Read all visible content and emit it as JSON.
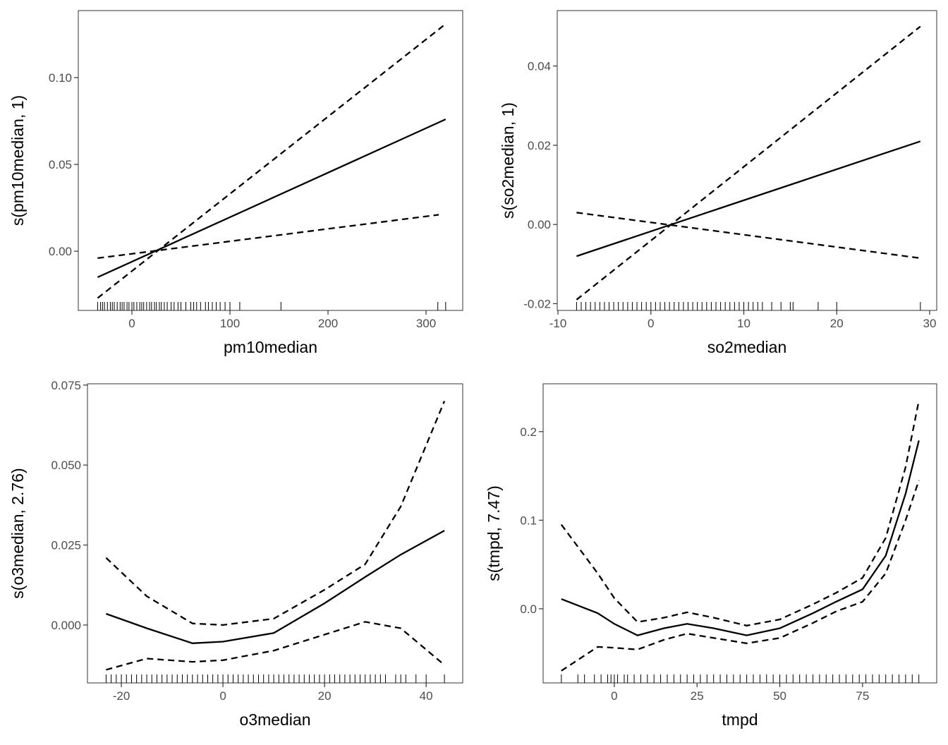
{
  "chart_data": [
    {
      "type": "line",
      "x_label": "pm10median",
      "y_label": "s(pm10median, 1)",
      "x": [
        -35,
        313,
        320
      ],
      "series": [
        {
          "color": "#000000",
          "dash": false,
          "values": [
            -0.015,
            0.0742,
            0.076
          ]
        },
        {
          "color": "#000000",
          "dash": true,
          "values": [
            -0.027,
            0.1278,
            0.131
          ]
        },
        {
          "color": "#000000",
          "dash": true,
          "values": [
            -0.004,
            0.021,
            null
          ]
        }
      ],
      "xlim": [
        -54.7,
        337.4
      ],
      "ylim": [
        -0.0341,
        0.1386
      ],
      "xticks": [
        0,
        100,
        200,
        300
      ],
      "yticks": [
        {
          "value": 0,
          "label": "0.00"
        },
        {
          "value": 0.05,
          "label": "0.05"
        },
        {
          "value": 0.1,
          "label": "0.10"
        }
      ],
      "rug": [
        -35,
        -32,
        -30,
        -28,
        -25,
        -22,
        -20,
        -18,
        -15,
        -12,
        -10,
        -8,
        -5,
        -3,
        0,
        2,
        5,
        8,
        10,
        12,
        15,
        18,
        20,
        23,
        25,
        28,
        30,
        33,
        36,
        40,
        43,
        47,
        50,
        55,
        60,
        63,
        66,
        70,
        75,
        78,
        82,
        86,
        90,
        95,
        100,
        110,
        152,
        312,
        320
      ]
    },
    {
      "type": "line",
      "x_label": "so2median",
      "y_label": "s(so2median, 1)",
      "x": [
        -8,
        29
      ],
      "series": [
        {
          "color": "#000000",
          "dash": false,
          "values": [
            -0.008,
            0.021
          ]
        },
        {
          "color": "#000000",
          "dash": true,
          "values": [
            -0.019,
            0.05
          ]
        },
        {
          "color": "#000000",
          "dash": true,
          "values": [
            0.003,
            -0.0085
          ]
        }
      ],
      "xlim": [
        -10.08,
        30.76
      ],
      "ylim": [
        -0.0217,
        0.054
      ],
      "xticks": [
        -10,
        0,
        10,
        20,
        30
      ],
      "yticks": [
        {
          "value": -0.02,
          "label": "-0.02"
        },
        {
          "value": 0,
          "label": "0.00"
        },
        {
          "value": 0.02,
          "label": "0.02"
        },
        {
          "value": 0.04,
          "label": "0.04"
        }
      ],
      "rug": [
        -8,
        -7.5,
        -7,
        -6.5,
        -6,
        -5.5,
        -5,
        -4.5,
        -4,
        -3.5,
        -3,
        -2.5,
        -2,
        -1.5,
        -1,
        -0.5,
        0,
        0.5,
        1,
        1.5,
        2,
        2.5,
        3,
        3.5,
        4,
        4.5,
        5,
        5.5,
        6,
        6.5,
        7,
        7.5,
        8,
        8.5,
        9,
        9.5,
        10,
        10.5,
        11,
        11.5,
        12,
        13,
        14,
        15,
        15.3,
        18,
        20,
        29
      ]
    },
    {
      "type": "line",
      "x_label": "o3median",
      "y_label": "s(o3median, 2.76)",
      "x": [
        -23,
        -15,
        -6,
        0,
        10,
        20,
        28,
        35,
        43.6
      ],
      "series": [
        {
          "color": "#000000",
          "dash": false,
          "values": [
            0.0035,
            -0.001,
            -0.0057,
            -0.0052,
            -0.0025,
            0.0068,
            0.015,
            0.022,
            0.0295
          ]
        },
        {
          "color": "#000000",
          "dash": true,
          "values": [
            0.021,
            0.009,
            0.0005,
            0,
            0.002,
            0.011,
            0.019,
            0.037,
            0.07
          ]
        },
        {
          "color": "#000000",
          "dash": true,
          "values": [
            -0.014,
            -0.0105,
            -0.0115,
            -0.011,
            -0.008,
            -0.003,
            0.001,
            -0.001,
            -0.0125
          ]
        }
      ],
      "xlim": [
        -26.67,
        47.2
      ],
      "ylim": [
        -0.0181,
        0.0754
      ],
      "xticks": [
        -20,
        0,
        20,
        40
      ],
      "yticks": [
        {
          "value": 0,
          "label": "0.000"
        },
        {
          "value": 0.025,
          "label": "0.025"
        },
        {
          "value": 0.05,
          "label": "0.050"
        },
        {
          "value": 0.075,
          "label": "0.075"
        }
      ],
      "rug": [
        -23,
        -22,
        -21,
        -20,
        -19,
        -18,
        -17,
        -16,
        -15,
        -14,
        -13,
        -12,
        -11,
        -10,
        -9,
        -8,
        -7,
        -6,
        -5,
        -4,
        -3,
        -2,
        -1,
        0,
        1,
        2,
        3,
        4,
        5,
        6,
        7,
        8,
        9,
        10,
        11,
        12,
        13,
        14,
        15,
        16,
        17,
        18,
        19,
        20,
        21,
        22,
        23,
        24,
        25,
        26,
        27,
        28,
        29,
        30,
        31,
        32,
        34,
        35,
        36,
        38,
        40,
        43.6
      ]
    },
    {
      "type": "line",
      "x_label": "tmpd",
      "y_label": "s(tmpd, 7.47)",
      "x": [
        -16,
        -5,
        0,
        7,
        15,
        22,
        30,
        40,
        50,
        60,
        67,
        75,
        82,
        88,
        92
      ],
      "series": [
        {
          "color": "#000000",
          "dash": false,
          "values": [
            0.011,
            -0.005,
            -0.017,
            -0.03,
            -0.022,
            -0.017,
            -0.022,
            -0.03,
            -0.022,
            -0.005,
            0.008,
            0.022,
            0.06,
            0.13,
            0.19
          ]
        },
        {
          "color": "#000000",
          "dash": true,
          "values": [
            0.095,
            0.04,
            0.012,
            -0.015,
            -0.01,
            -0.004,
            -0.01,
            -0.019,
            -0.012,
            0.005,
            0.018,
            0.035,
            0.08,
            0.16,
            0.235
          ]
        },
        {
          "color": "#000000",
          "dash": true,
          "values": [
            -0.07,
            -0.043,
            -0.044,
            -0.046,
            -0.035,
            -0.028,
            -0.033,
            -0.039,
            -0.033,
            -0.016,
            -0.003,
            0.008,
            0.04,
            0.1,
            0.145
          ]
        }
      ],
      "xlim": [
        -21.5,
        97.4
      ],
      "ylim": [
        -0.0837,
        0.254
      ],
      "xticks": [
        0,
        25,
        50,
        75
      ],
      "yticks": [
        {
          "value": 0,
          "label": "0.0"
        },
        {
          "value": 0.1,
          "label": "0.1"
        },
        {
          "value": 0.2,
          "label": "0.2"
        }
      ],
      "rug": [
        -16,
        -11,
        -9,
        -6,
        -4,
        -2,
        -1,
        0,
        1,
        3,
        4,
        6,
        8,
        10,
        12,
        14,
        16,
        18,
        20,
        22,
        24,
        26,
        28,
        30,
        32,
        34,
        36,
        38,
        40,
        42,
        44,
        46,
        48,
        50,
        52,
        54,
        56,
        58,
        60,
        62,
        64,
        66,
        68,
        70,
        72,
        74,
        76,
        78,
        80,
        82,
        84,
        86,
        88,
        90,
        92
      ]
    }
  ]
}
